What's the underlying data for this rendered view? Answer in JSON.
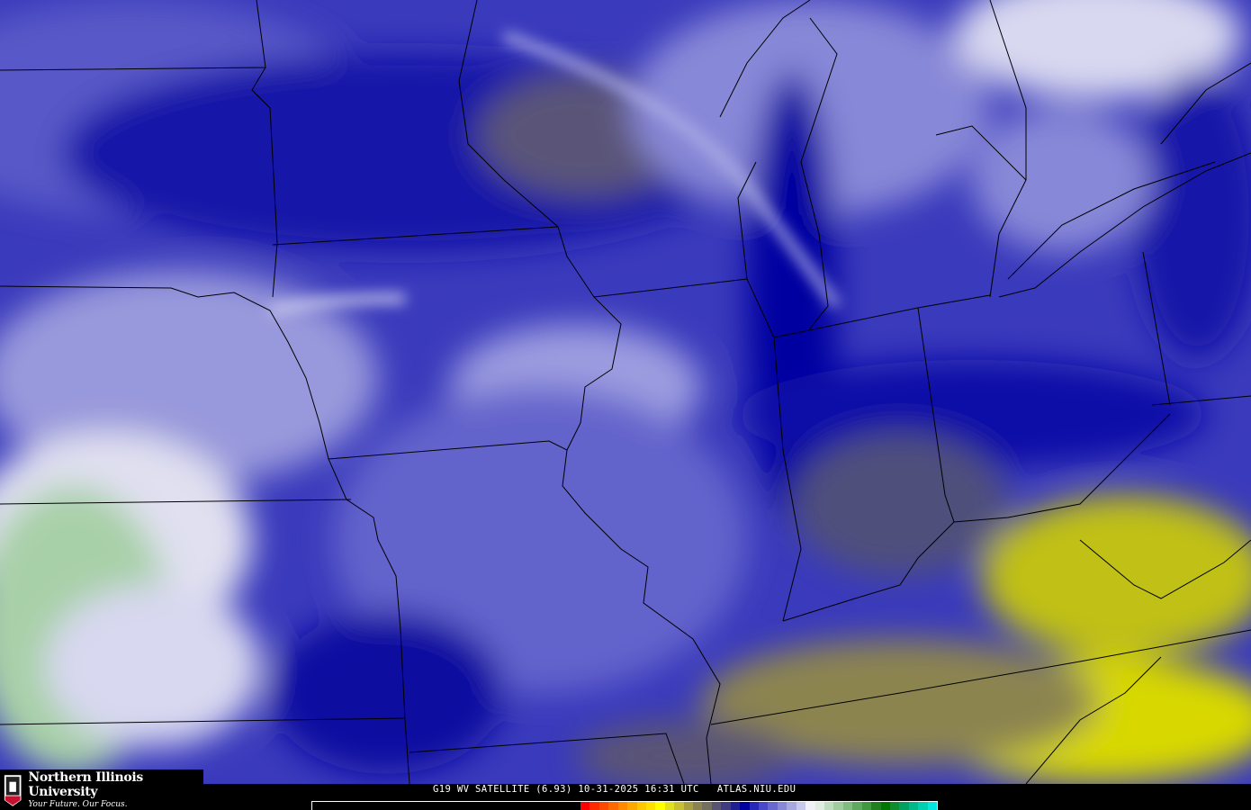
{
  "branding": {
    "university": "Northern Illinois University",
    "tagline": "Your Future. Our Focus.",
    "shield_text": "NIU"
  },
  "caption": "G19 WV SATELLITE (6.93) 10-31-2025 16:31 UTC   ATLAS.NIU.EDU",
  "colorbar": {
    "colors": [
      "#ff0000",
      "#ff2a00",
      "#ff4a00",
      "#ff6a00",
      "#ff8a00",
      "#ffa800",
      "#ffc800",
      "#ffe000",
      "#ffff00",
      "#e0e020",
      "#c8c030",
      "#a8a040",
      "#8c8450",
      "#747060",
      "#5a5474",
      "#403c80",
      "#202090",
      "#0000a0",
      "#2828b8",
      "#4848c8",
      "#6868d0",
      "#8888d8",
      "#a8a8e0",
      "#c8c8ec",
      "#f0f0f8",
      "#e0ece0",
      "#c0dcc0",
      "#a0cca0",
      "#80bc80",
      "#60a860",
      "#409840",
      "#208020",
      "#007800",
      "#108c30",
      "#00a060",
      "#00b888",
      "#00d0b0",
      "#00e8e0"
    ]
  },
  "colors": {
    "deep_blue": "#0000a8",
    "mid_blue": "#4040c0",
    "light_blue": "#8c8cd8",
    "pale": "#d8d8f0",
    "olive": "#7a7258",
    "yellow": "#e0e000",
    "green": "#90c090"
  }
}
